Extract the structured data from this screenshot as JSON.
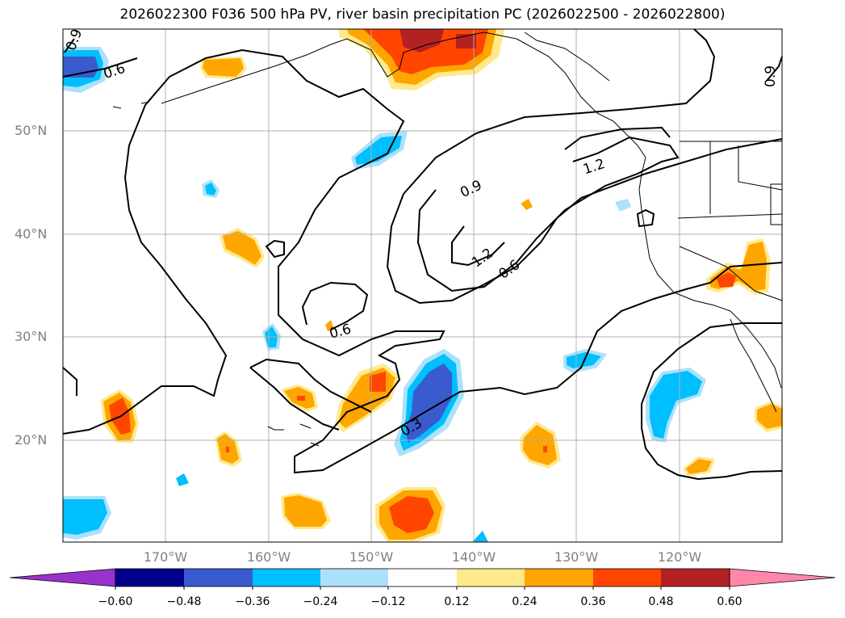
{
  "title": "2026022300 F036 500 hPa PV, river basin precipitation PC (2026022500 - 2026022800)",
  "map": {
    "lon_labels": [
      "170°W",
      "160°W",
      "150°W",
      "140°W",
      "130°W",
      "120°W"
    ],
    "lat_labels": [
      "50°N",
      "40°N",
      "30°N",
      "20°N"
    ],
    "contour_labels": [
      "0.9",
      "0.6",
      "1.2",
      "0.9",
      "1.2",
      "0.6",
      "0.6",
      "0.3",
      "0.9"
    ]
  },
  "colorbar": {
    "ticks": [
      "−0.60",
      "−0.48",
      "−0.36",
      "−0.24",
      "−0.12",
      "0.12",
      "0.24",
      "0.36",
      "0.48",
      "0.60"
    ],
    "colors": [
      "#9932CC",
      "#00008B",
      "#3A5BCD",
      "#00BFFF",
      "#ADE1FA",
      "#FFFFFF",
      "#FFE98A",
      "#FFA500",
      "#FF4500",
      "#B22222",
      "#FF87AA"
    ]
  }
}
